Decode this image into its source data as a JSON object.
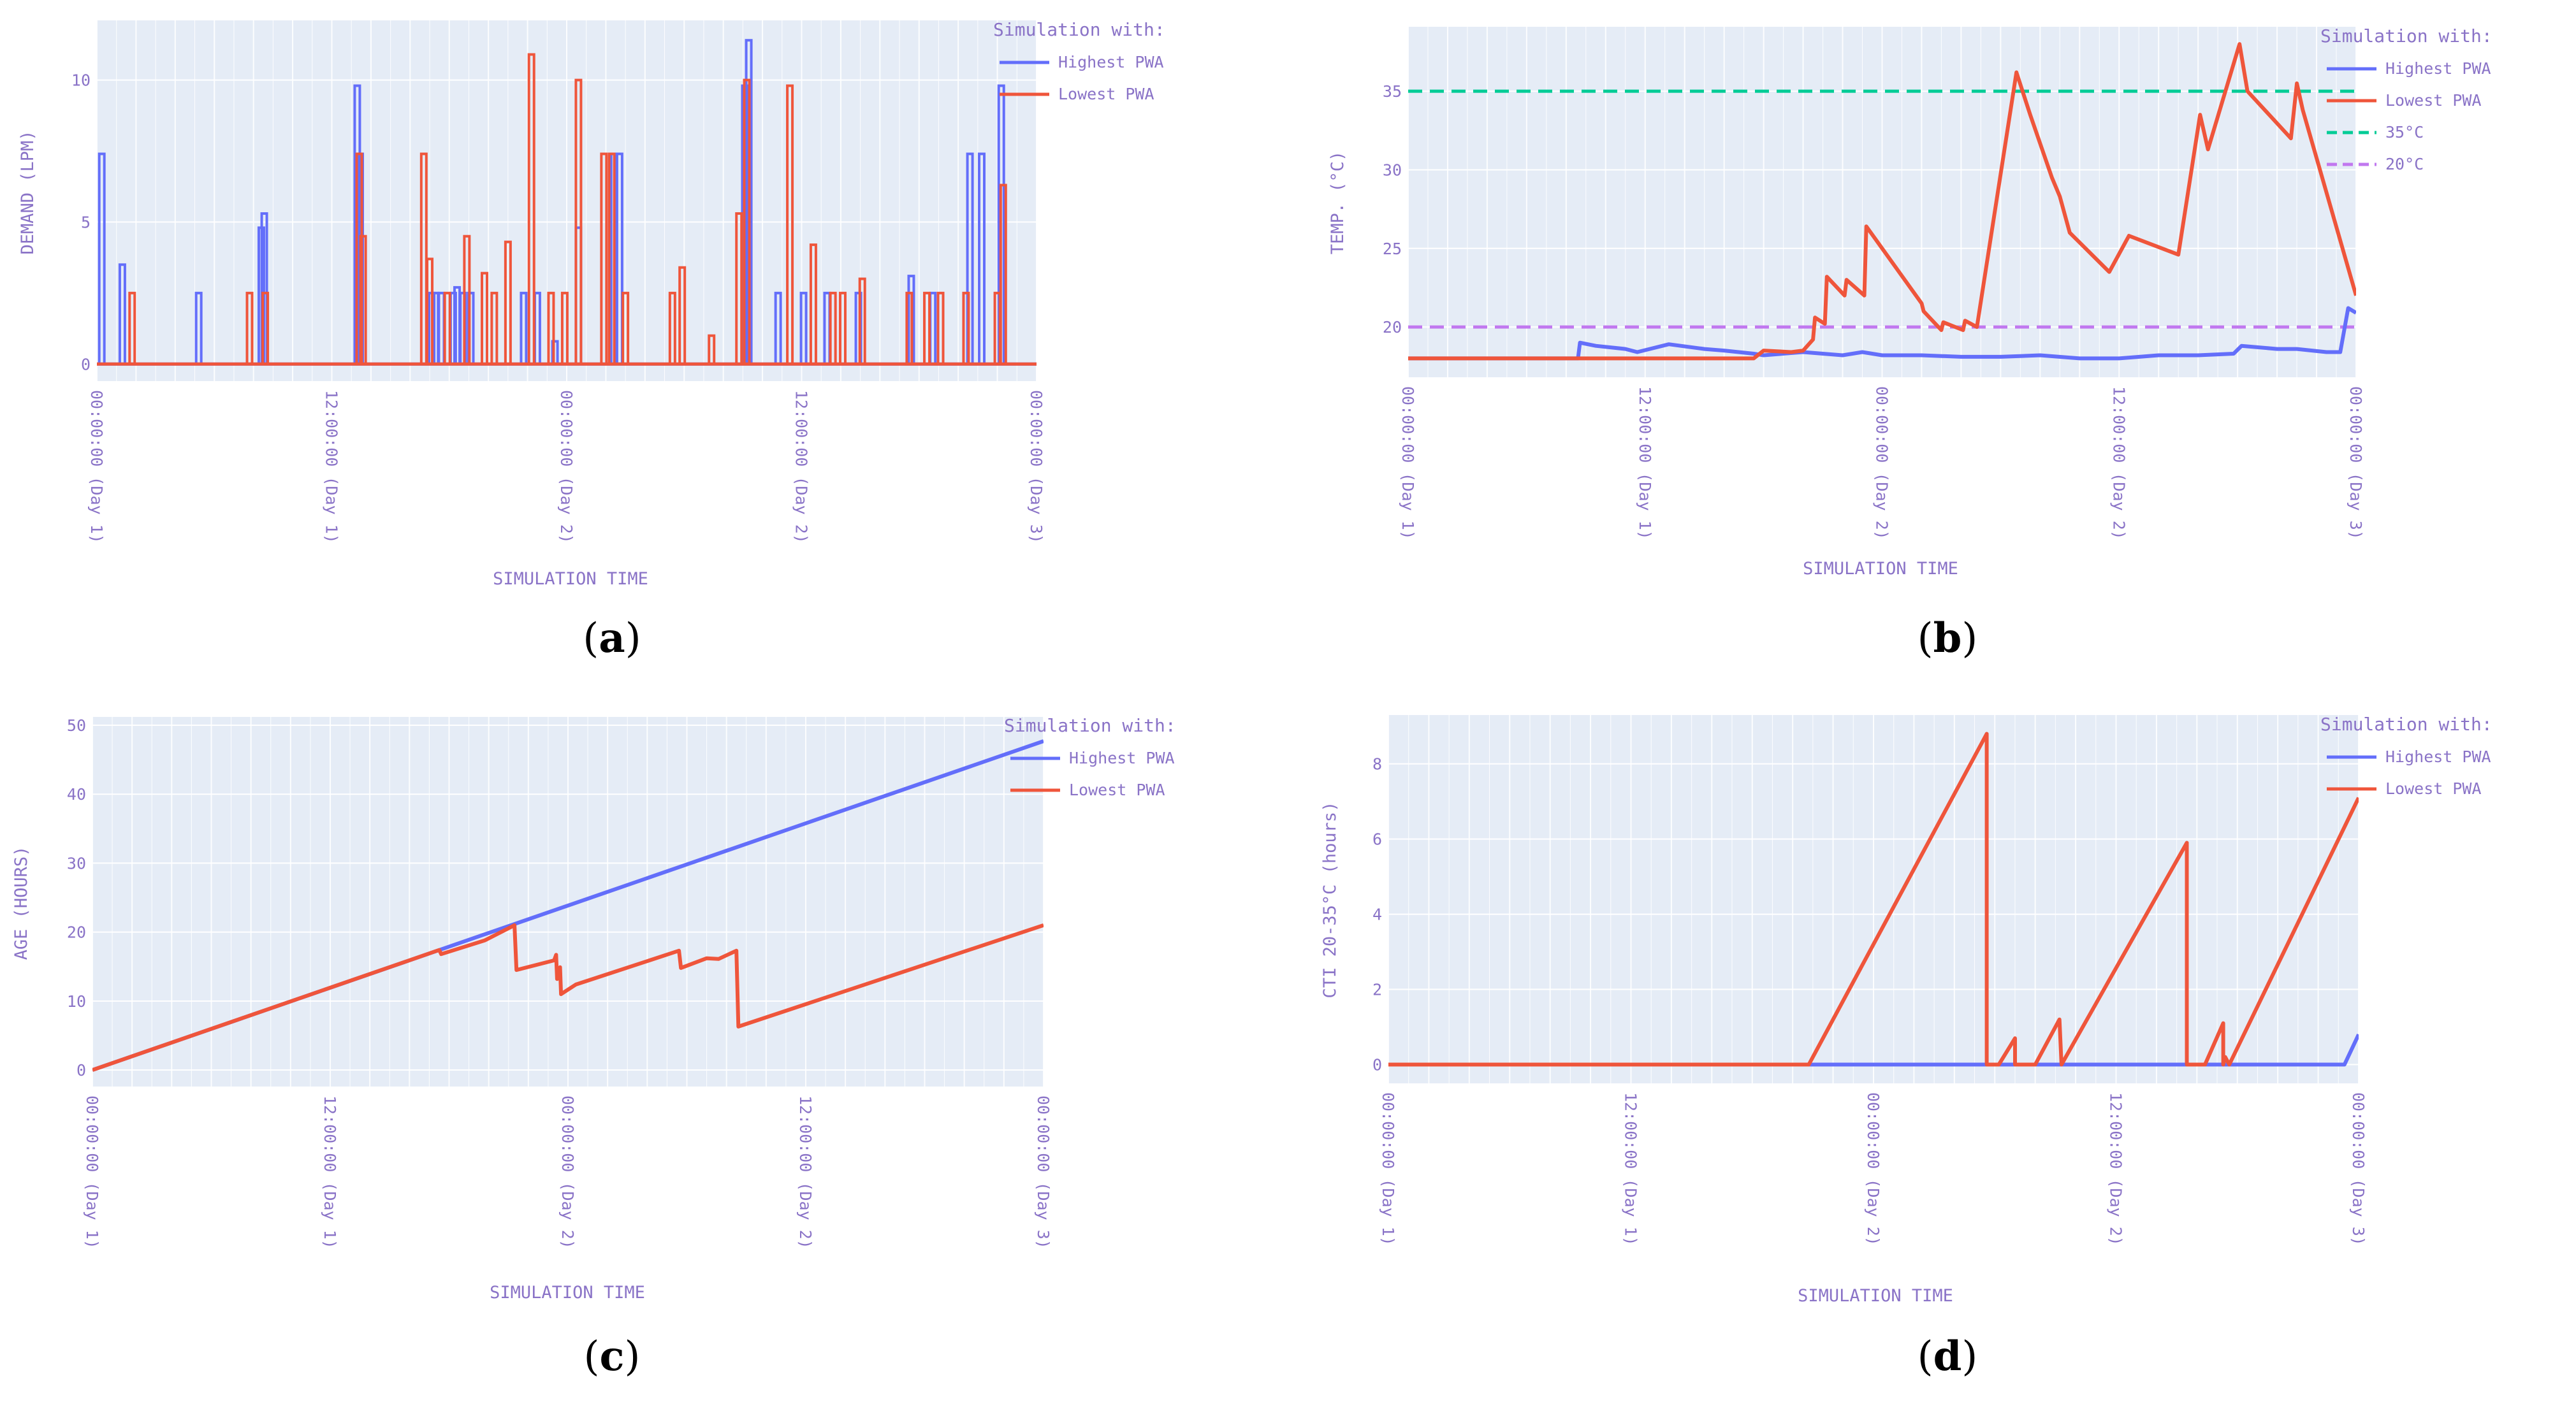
{
  "figure": {
    "panels": [
      {
        "caption_letter": "a"
      },
      {
        "caption_letter": "b"
      },
      {
        "caption_letter": "c"
      },
      {
        "caption_letter": "d"
      }
    ]
  },
  "colors": {
    "plot_bg": "#e5ecf6",
    "grid": "#ffffff",
    "axis_text": "#8a73c7",
    "series_highest": "#636efa",
    "series_lowest": "#ef553b",
    "ref_35": "#00cc96",
    "ref_20": "#c178ef"
  },
  "chart_data": [
    {
      "id": "a",
      "type": "line",
      "title": "",
      "xlabel": "SIMULATION TIME",
      "ylabel": "DEMAND (LPM)",
      "xlim": [
        0,
        48
      ],
      "ylim": [
        -0.6,
        12.1
      ],
      "yticks": [
        0,
        5,
        10
      ],
      "xticks": [
        0,
        12,
        24,
        36,
        48
      ],
      "xtick_labels": [
        "00:00:00 (Day 1)",
        "12:00:00 (Day 1)",
        "00:00:00 (Day 2)",
        "12:00:00 (Day 2)",
        "00:00:00 (Day 3)"
      ],
      "legend_title": "Simulation with:",
      "legend": [
        "Highest PWA",
        "Lowest PWA"
      ],
      "series": [
        {
          "name": "Highest PWA",
          "style": "spikes",
          "x": [
            0.25,
            1.3,
            5.2,
            8.4,
            8.55,
            13.3,
            13.45,
            17.1,
            17.3,
            17.6,
            18.2,
            18.4,
            18.7,
            19.1,
            21.8,
            22.5,
            23.4,
            24.6,
            26.4,
            26.7,
            33.1,
            33.3,
            34.8,
            36.1,
            37.3,
            38.9,
            41.6,
            42.7,
            44.6,
            45.2,
            46.2
          ],
          "values": [
            7.4,
            3.5,
            2.5,
            4.8,
            5.3,
            9.8,
            7.4,
            2.5,
            2.5,
            2.5,
            2.5,
            2.7,
            2.5,
            2.5,
            2.5,
            2.5,
            0.8,
            4.8,
            7.4,
            7.4,
            9.8,
            11.4,
            2.5,
            2.5,
            2.5,
            2.5,
            3.1,
            2.5,
            7.4,
            7.4,
            9.8
          ]
        },
        {
          "name": "Lowest PWA",
          "style": "spikes",
          "x": [
            1.8,
            7.8,
            8.6,
            13.4,
            13.6,
            16.7,
            17.0,
            17.9,
            18.9,
            19.8,
            20.3,
            21.0,
            22.2,
            23.2,
            23.9,
            24.6,
            25.9,
            26.3,
            27.0,
            29.4,
            29.9,
            31.4,
            32.8,
            33.2,
            35.4,
            36.6,
            37.6,
            38.1,
            39.1,
            41.5,
            42.4,
            43.1,
            44.4,
            46.0,
            46.3
          ],
          "values": [
            2.5,
            2.5,
            2.5,
            7.4,
            4.5,
            7.4,
            3.7,
            2.5,
            4.5,
            3.2,
            2.5,
            4.3,
            10.9,
            2.5,
            2.5,
            10.0,
            7.4,
            7.4,
            2.5,
            2.5,
            3.4,
            1.0,
            5.3,
            10.0,
            9.8,
            4.2,
            2.5,
            2.5,
            3.0,
            2.5,
            2.5,
            2.5,
            2.5,
            2.5,
            6.3
          ]
        }
      ]
    },
    {
      "id": "b",
      "type": "line",
      "title": "",
      "xlabel": "SIMULATION TIME",
      "ylabel": "TEMP. (°C)",
      "xlim": [
        0,
        48
      ],
      "ylim": [
        16.8,
        39.1
      ],
      "yticks": [
        20,
        25,
        30,
        35
      ],
      "xticks": [
        0,
        12,
        24,
        36,
        48
      ],
      "xtick_labels": [
        "00:00:00 (Day 1)",
        "12:00:00 (Day 1)",
        "00:00:00 (Day 2)",
        "12:00:00 (Day 2)",
        "00:00:00 (Day 3)"
      ],
      "legend_title": "Simulation with:",
      "legend": [
        "Highest PWA",
        "Lowest PWA",
        "35°C",
        "20°C"
      ],
      "series": [
        {
          "name": "Highest PWA",
          "style": "line",
          "x": [
            0,
            8.6,
            8.7,
            9.5,
            11,
            11.6,
            13.2,
            15,
            16,
            17.5,
            18,
            20,
            22,
            23,
            24,
            26,
            28,
            30,
            32,
            34,
            36,
            38,
            39,
            40,
            41.8,
            42.2,
            44,
            45,
            46.5,
            47.2,
            47.6,
            48
          ],
          "values": [
            18.0,
            18.0,
            19.0,
            18.8,
            18.6,
            18.4,
            18.9,
            18.6,
            18.5,
            18.3,
            18.2,
            18.4,
            18.2,
            18.4,
            18.2,
            18.2,
            18.1,
            18.1,
            18.2,
            18.0,
            18.0,
            18.2,
            18.2,
            18.2,
            18.3,
            18.8,
            18.6,
            18.6,
            18.4,
            18.4,
            21.2,
            20.9
          ]
        },
        {
          "name": "Lowest PWA",
          "style": "line",
          "x": [
            0,
            17.5,
            18,
            19.4,
            20,
            20.5,
            20.6,
            21.1,
            21.2,
            22.1,
            22.2,
            23.1,
            23.2,
            26.0,
            26.1,
            27.0,
            27.1,
            28.1,
            28.2,
            28.8,
            30.8,
            31.5,
            32.6,
            33.0,
            33.5,
            35.5,
            36.5,
            39.0,
            40.1,
            40.5,
            42.1,
            42.5,
            44.7,
            45.0,
            45.3,
            48
          ],
          "values": [
            18.0,
            18.0,
            18.5,
            18.4,
            18.5,
            19.2,
            20.6,
            20.2,
            23.2,
            22.0,
            23.0,
            22.0,
            26.4,
            21.5,
            21.0,
            19.8,
            20.3,
            19.8,
            20.4,
            20.0,
            36.2,
            33.5,
            29.5,
            28.3,
            26.0,
            23.5,
            25.8,
            24.6,
            33.5,
            31.3,
            38.0,
            35.0,
            32.0,
            35.5,
            33.8,
            22.0
          ]
        }
      ],
      "reference_lines": [
        {
          "name": "35°C",
          "y": 35,
          "style": "dashed"
        },
        {
          "name": "20°C",
          "y": 20,
          "style": "dashed"
        }
      ]
    },
    {
      "id": "c",
      "type": "line",
      "title": "",
      "xlabel": "SIMULATION TIME",
      "ylabel": "AGE (HOURS)",
      "xlim": [
        0,
        48
      ],
      "ylim": [
        -2.4,
        51.2
      ],
      "yticks": [
        0,
        10,
        20,
        30,
        40,
        50
      ],
      "xticks": [
        0,
        12,
        24,
        36,
        48
      ],
      "xtick_labels": [
        "00:00:00 (Day 1)",
        "12:00:00 (Day 1)",
        "00:00:00 (Day 2)",
        "12:00:00 (Day 2)",
        "00:00:00 (Day 3)"
      ],
      "legend_title": "Simulation with:",
      "legend": [
        "Highest PWA",
        "Lowest PWA"
      ],
      "series": [
        {
          "name": "Highest PWA",
          "style": "line",
          "x": [
            0,
            48
          ],
          "values": [
            0,
            47.7
          ]
        },
        {
          "name": "Lowest PWA",
          "style": "line",
          "x": [
            0,
            17.5,
            17.6,
            19.8,
            21.3,
            21.4,
            23.3,
            23.4,
            23.45,
            23.6,
            23.65,
            24.4,
            29.6,
            29.7,
            31.0,
            31.6,
            32.5,
            32.6,
            48
          ],
          "values": [
            0,
            17.4,
            16.8,
            18.8,
            21.0,
            14.5,
            15.9,
            16.7,
            13.2,
            14.9,
            11.0,
            12.4,
            17.3,
            14.8,
            16.2,
            16.1,
            17.3,
            6.3,
            21.0
          ]
        }
      ]
    },
    {
      "id": "d",
      "type": "line",
      "title": "",
      "xlabel": "SIMULATION TIME",
      "ylabel": "CTI 20-35°C  (hours)",
      "xlim": [
        0,
        48
      ],
      "ylim": [
        -0.5,
        9.3
      ],
      "yticks": [
        0,
        2,
        4,
        6,
        8
      ],
      "xticks": [
        0,
        12,
        24,
        36,
        48
      ],
      "xtick_labels": [
        "00:00:00 (Day 1)",
        "12:00:00 (Day 1)",
        "00:00:00 (Day 2)",
        "12:00:00 (Day 2)",
        "00:00:00 (Day 3)"
      ],
      "legend_title": "Simulation with:",
      "legend": [
        "Highest PWA",
        "Lowest PWA"
      ],
      "series": [
        {
          "name": "Highest PWA",
          "style": "line",
          "x": [
            0,
            47.3,
            48
          ],
          "values": [
            0,
            0,
            0.8
          ]
        },
        {
          "name": "Lowest PWA",
          "style": "line",
          "x": [
            0,
            20.8,
            29.6,
            29.6,
            30.2,
            31.0,
            31.0,
            32.0,
            33.2,
            33.3,
            39.5,
            39.5,
            40.4,
            41.3,
            41.3,
            41.4,
            41.6,
            41.6,
            48
          ],
          "values": [
            0,
            0,
            8.8,
            0,
            0,
            0.7,
            0,
            0,
            1.2,
            0,
            5.9,
            0,
            0,
            1.1,
            0,
            0.2,
            0,
            0,
            7.1
          ]
        }
      ]
    }
  ]
}
